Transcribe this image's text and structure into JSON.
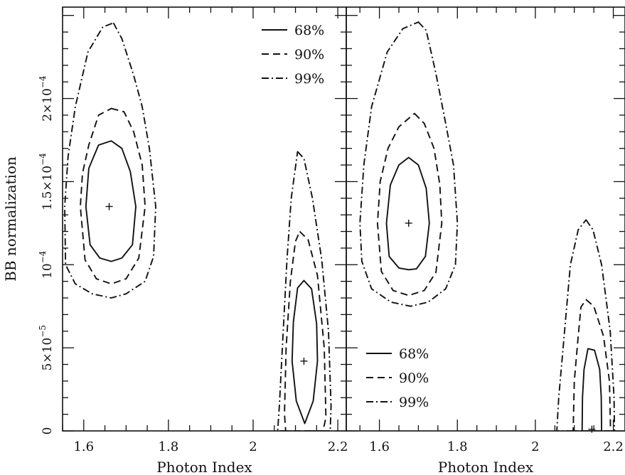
{
  "chart_data": [
    {
      "type": "line",
      "title": "",
      "xlabel": "Photon Index",
      "ylabel": "BB normalization",
      "xlim": [
        1.55,
        2.22
      ],
      "ylim": [
        0,
        0.000255
      ],
      "x_ticks": [
        1.6,
        1.8,
        2,
        2.2
      ],
      "x_tick_labels": [
        "1.6",
        "1.8",
        "2",
        "2.2"
      ],
      "y_ticks": [
        0,
        5e-05,
        0.0001,
        0.00015,
        0.0002
      ],
      "y_tick_labels": [
        {
          "mant": "0",
          "exp": ""
        },
        {
          "mant": "5×10",
          "exp": "−5"
        },
        {
          "mant": "10",
          "exp": "−4"
        },
        {
          "mant": "1.5×10",
          "exp": "−4"
        },
        {
          "mant": "2×10",
          "exp": "−4"
        }
      ],
      "legend_position": "top-right",
      "best_fits": [
        [
          1.66,
          0.000135
        ],
        [
          2.12,
          4.2e-05
        ]
      ],
      "series": [
        {
          "name": "68%",
          "style": "solid",
          "contours": [
            [
              [
                1.665,
                0.0001745
              ],
              [
                1.69,
                0.00017
              ],
              [
                1.71,
                0.000156
              ],
              [
                1.723,
                0.000135
              ],
              [
                1.715,
                0.000112
              ],
              [
                1.69,
                0.000104
              ],
              [
                1.665,
                0.000102
              ],
              [
                1.638,
                0.000104
              ],
              [
                1.615,
                0.000112
              ],
              [
                1.605,
                0.000135
              ],
              [
                1.612,
                0.000158
              ],
              [
                1.635,
                0.000172
              ]
            ],
            [
              [
                2.12,
                9.05e-05
              ],
              [
                2.138,
                8.55e-05
              ],
              [
                2.15,
                6.45e-05
              ],
              [
                2.152,
                4.2e-05
              ],
              [
                2.142,
                1.8e-05
              ],
              [
                2.122,
                4.5e-06
              ],
              [
                2.102,
                1.8e-05
              ],
              [
                2.092,
                4.2e-05
              ],
              [
                2.095,
                6.55e-05
              ],
              [
                2.105,
                8.6e-05
              ]
            ]
          ]
        },
        {
          "name": "90%",
          "style": "dashed",
          "contours": [
            [
              [
                1.665,
                0.000194
              ],
              [
                1.695,
                0.000192
              ],
              [
                1.718,
                0.00018
              ],
              [
                1.738,
                0.00016
              ],
              [
                1.745,
                0.000135
              ],
              [
                1.73,
                0.000104
              ],
              [
                1.7,
                9.15e-05
              ],
              [
                1.665,
                8.85e-05
              ],
              [
                1.63,
                9.15e-05
              ],
              [
                1.603,
                0.000103
              ],
              [
                1.592,
                0.000135
              ],
              [
                1.597,
                0.000155
              ],
              [
                1.612,
                0.000172
              ],
              [
                1.635,
                0.00019
              ]
            ],
            [
              [
                2.11,
                0.00012
              ],
              [
                2.13,
                0.000115
              ],
              [
                2.152,
                9.35e-05
              ],
              [
                2.168,
                5e-05
              ],
              [
                2.172,
                8e-06
              ],
              [
                2.165,
                0
              ],
              [
                2.077,
                0
              ],
              [
                2.074,
                1e-05
              ],
              [
                2.078,
                5e-05
              ],
              [
                2.088,
                9e-05
              ],
              [
                2.1,
                0.000114
              ]
            ]
          ]
        },
        {
          "name": "99%",
          "style": "dashdot",
          "contours": [
            [
              [
                1.67,
                0.0002455
              ],
              [
                1.69,
                0.000236
              ],
              [
                1.718,
                0.000214
              ],
              [
                1.738,
                0.000195
              ],
              [
                1.755,
                0.00017
              ],
              [
                1.77,
                0.000135
              ],
              [
                1.765,
                0.000105
              ],
              [
                1.745,
                9e-05
              ],
              [
                1.7,
                8.25e-05
              ],
              [
                1.665,
                8e-05
              ],
              [
                1.62,
                8.25e-05
              ],
              [
                1.58,
                8.85e-05
              ],
              [
                1.557,
                0.0001
              ],
              [
                1.555,
                0.000135
              ],
              [
                1.563,
                0.000165
              ],
              [
                1.58,
                0.000195
              ],
              [
                1.61,
                0.000228
              ],
              [
                1.645,
                0.000243
              ]
            ],
            [
              [
                2.105,
                0.000168
              ],
              [
                2.12,
                0.000164
              ],
              [
                2.14,
                0.00014
              ],
              [
                2.162,
                0.000103
              ],
              [
                2.178,
                6e-05
              ],
              [
                2.184,
                1.5e-05
              ],
              [
                2.182,
                0
              ],
              [
                2.058,
                0
              ],
              [
                2.062,
                1.5e-05
              ],
              [
                2.071,
                6e-05
              ],
              [
                2.08,
                0.000103
              ],
              [
                2.09,
                0.00014
              ]
            ]
          ]
        }
      ]
    },
    {
      "type": "line",
      "title": "",
      "xlabel": "Photon Index",
      "ylabel": "",
      "xlim": [
        1.515,
        2.23
      ],
      "ylim": [
        0,
        0.000255
      ],
      "x_ticks": [
        1.6,
        1.8,
        2,
        2.2
      ],
      "x_tick_labels": [
        "1.6",
        "1.8",
        "2",
        "2.2"
      ],
      "legend_position": "bottom-left",
      "best_fits": [
        [
          1.675,
          0.000125
        ],
        [
          2.145,
          1e-06
        ]
      ],
      "series": [
        {
          "name": "68%",
          "style": "solid",
          "contours": [
            [
              [
                1.675,
                0.0001645
              ],
              [
                1.7,
                0.00016
              ],
              [
                1.72,
                0.000146
              ],
              [
                1.728,
                0.000125
              ],
              [
                1.718,
                0.000105
              ],
              [
                1.695,
                9.75e-05
              ],
              [
                1.675,
                9.7e-05
              ],
              [
                1.65,
                9.8e-05
              ],
              [
                1.625,
                0.000105
              ],
              [
                1.618,
                0.000125
              ],
              [
                1.628,
                0.000148
              ],
              [
                1.65,
                0.00016
              ]
            ],
            [
              [
                2.135,
                4.95e-05
              ],
              [
                2.152,
                4.85e-05
              ],
              [
                2.165,
                3.7e-05
              ],
              [
                2.169,
                2e-05
              ],
              [
                2.17,
                0
              ],
              [
                2.12,
                0
              ],
              [
                2.121,
                2e-05
              ],
              [
                2.125,
                3.7e-05
              ]
            ]
          ]
        },
        {
          "name": "90%",
          "style": "dashed",
          "contours": [
            [
              [
                1.69,
                0.000191
              ],
              [
                1.715,
                0.000185
              ],
              [
                1.74,
                0.00017
              ],
              [
                1.755,
                0.000148
              ],
              [
                1.76,
                0.000125
              ],
              [
                1.745,
                9.55e-05
              ],
              [
                1.715,
                8.45e-05
              ],
              [
                1.675,
                8.15e-05
              ],
              [
                1.635,
                8.45e-05
              ],
              [
                1.605,
                9.6e-05
              ],
              [
                1.595,
                0.000125
              ],
              [
                1.602,
                0.00015
              ],
              [
                1.622,
                0.00017
              ],
              [
                1.65,
                0.000183
              ]
            ],
            [
              [
                2.13,
                7.9e-05
              ],
              [
                2.15,
                7.5e-05
              ],
              [
                2.175,
                5.7e-05
              ],
              [
                2.19,
                3e-05
              ],
              [
                2.193,
                0
              ],
              [
                2.097,
                0
              ],
              [
                2.1,
                3e-05
              ],
              [
                2.11,
                5.7e-05
              ],
              [
                2.117,
                7.45e-05
              ]
            ]
          ]
        },
        {
          "name": "99%",
          "style": "dashdot",
          "contours": [
            [
              [
                1.7,
                0.000246
              ],
              [
                1.72,
                0.000241
              ],
              [
                1.745,
                0.000215
              ],
              [
                1.77,
                0.000185
              ],
              [
                1.79,
                0.00016
              ],
              [
                1.8,
                0.000125
              ],
              [
                1.795,
                0.0001
              ],
              [
                1.77,
                8.55e-05
              ],
              [
                1.725,
                7.75e-05
              ],
              [
                1.68,
                7.5e-05
              ],
              [
                1.63,
                7.75e-05
              ],
              [
                1.58,
                8.55e-05
              ],
              [
                1.555,
                0.000102
              ],
              [
                1.55,
                0.000125
              ],
              [
                1.56,
                0.00016
              ],
              [
                1.58,
                0.000195
              ],
              [
                1.62,
                0.000228
              ],
              [
                1.66,
                0.000242
              ]
            ],
            [
              [
                2.13,
                0.000127
              ],
              [
                2.148,
                0.000121
              ],
              [
                2.17,
                0.0001
              ],
              [
                2.192,
                6e-05
              ],
              [
                2.202,
                2e-05
              ],
              [
                2.203,
                0
              ],
              [
                2.055,
                0
              ],
              [
                2.06,
                2e-05
              ],
              [
                2.075,
                6e-05
              ],
              [
                2.09,
                0.0001
              ],
              [
                2.11,
                0.000121
              ]
            ]
          ]
        }
      ]
    }
  ]
}
